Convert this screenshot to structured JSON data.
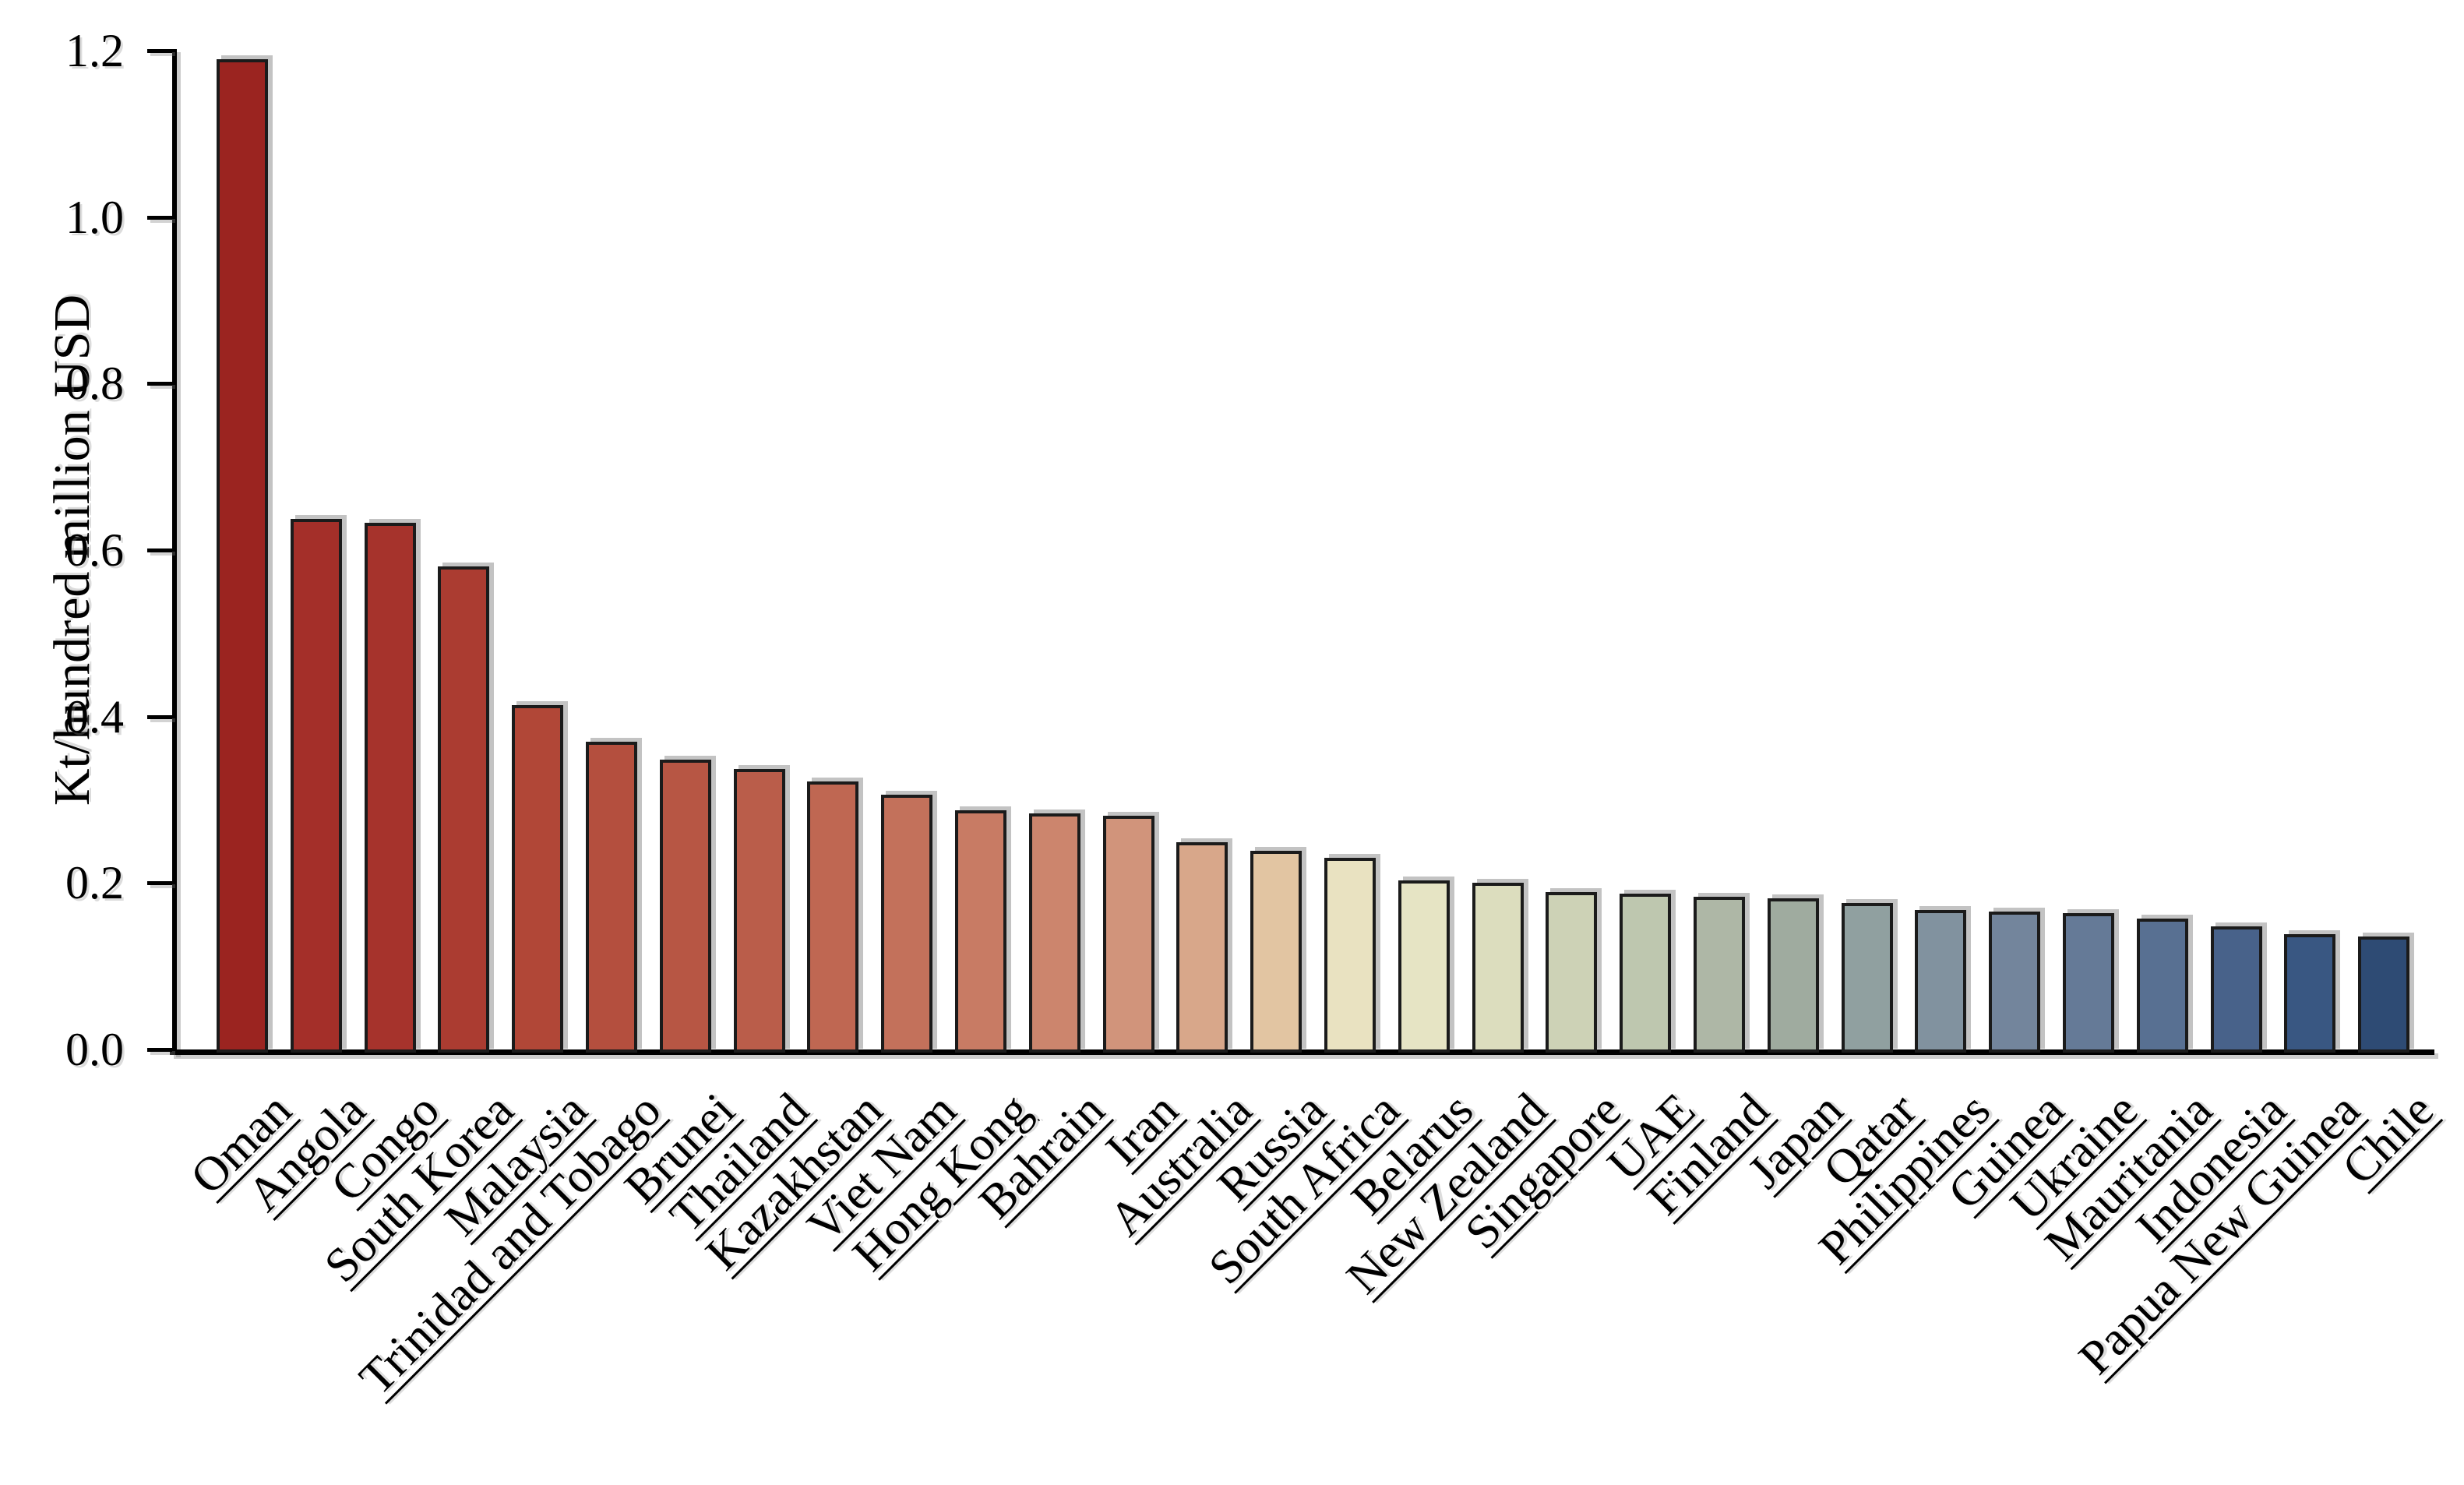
{
  "chart_data": {
    "type": "bar",
    "title": "",
    "ylabel": "Kt/hundred million USD",
    "xlabel": "",
    "ylim": [
      0.0,
      1.2
    ],
    "ytick_labels": [
      "0.0",
      "0.2",
      "0.4",
      "0.6",
      "0.8",
      "1.0",
      "1.2"
    ],
    "ytick_values": [
      0.0,
      0.2,
      0.4,
      0.6,
      0.8,
      1.0,
      1.2
    ],
    "grid": "off",
    "legend": "none",
    "categories": [
      "Oman",
      "Angola",
      "Congo",
      "South Korea",
      "Malaysia",
      "Trinidad and Tobago",
      "Brunei",
      "Thailand",
      "Kazakhstan",
      "Viet Nam",
      "Hong Kong",
      "Bahrain",
      "Iran",
      "Australia",
      "Russia",
      "South Africa",
      "Belarus",
      "New Zealand",
      "Singapore",
      "UAE",
      "Finland",
      "Japan",
      "Qatar",
      "Philippines",
      "Guinea",
      "Ukraine",
      "Mauritania",
      "Indonesia",
      "Papua New Guinea",
      "Chile"
    ],
    "values": [
      1.19,
      0.637,
      0.633,
      0.58,
      0.414,
      0.37,
      0.348,
      0.337,
      0.322,
      0.306,
      0.287,
      0.284,
      0.281,
      0.249,
      0.239,
      0.23,
      0.203,
      0.2,
      0.189,
      0.187,
      0.183,
      0.182,
      0.176,
      0.168,
      0.166,
      0.164,
      0.157,
      0.148,
      0.139,
      0.136
    ],
    "bar_colors": [
      "#9b2420",
      "#a42f29",
      "#a6332c",
      "#ab3c31",
      "#b14737",
      "#b44f3e",
      "#b75644",
      "#ba5d4a",
      "#bf6752",
      "#c3715b",
      "#c87b64",
      "#cc856d",
      "#d1947b",
      "#d8a78a",
      "#e2c5a2",
      "#e9e2c1",
      "#e6e4c4",
      "#dcddbe",
      "#cdd2b6",
      "#bec7af",
      "#aeb7a6",
      "#9fab9f",
      "#90a0a0",
      "#81929f",
      "#73859c",
      "#657a97",
      "#587092",
      "#48628a",
      "#395782",
      "#2e4b74"
    ],
    "bar_edge_color": "#1b1b1b",
    "axis_color": "#000000",
    "background_color": "#ffffff"
  }
}
